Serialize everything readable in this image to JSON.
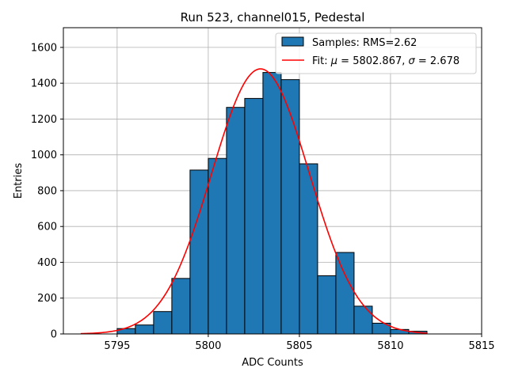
{
  "chart_data": {
    "type": "bar",
    "title": "Run 523, channel015, Pedestal",
    "xlabel": "ADC Counts",
    "ylabel": "Entries",
    "xlim": [
      5792.05,
      5815.0
    ],
    "ylim": [
      0,
      1710
    ],
    "xticks": [
      5795,
      5800,
      5805,
      5810,
      5815
    ],
    "yticks": [
      0,
      200,
      400,
      600,
      800,
      1000,
      1200,
      1400,
      1600
    ],
    "grid": true,
    "legend_position": "top-right",
    "histogram": {
      "name": "Samples: RMS=2.62",
      "bin_edges": [
        5795,
        5796,
        5797,
        5798,
        5799,
        5800,
        5801,
        5802,
        5803,
        5804,
        5805,
        5806,
        5807,
        5808,
        5809,
        5810,
        5811,
        5812
      ],
      "counts": [
        30,
        50,
        125,
        310,
        915,
        980,
        1265,
        1315,
        1460,
        1420,
        950,
        325,
        455,
        155,
        60,
        25,
        15
      ],
      "color": "#1f77b4",
      "edgecolor": "#000000"
    },
    "fit": {
      "name": "Fit: μ = 5802.867, σ = 2.678",
      "name_parts": [
        "Fit: ",
        "μ",
        " = 5802.867, ",
        "σ",
        " = 2.678"
      ],
      "mu": 5802.867,
      "sigma": 2.678,
      "amplitude": 1480,
      "x_range": [
        5793,
        5812
      ],
      "color": "#ff0000"
    }
  }
}
